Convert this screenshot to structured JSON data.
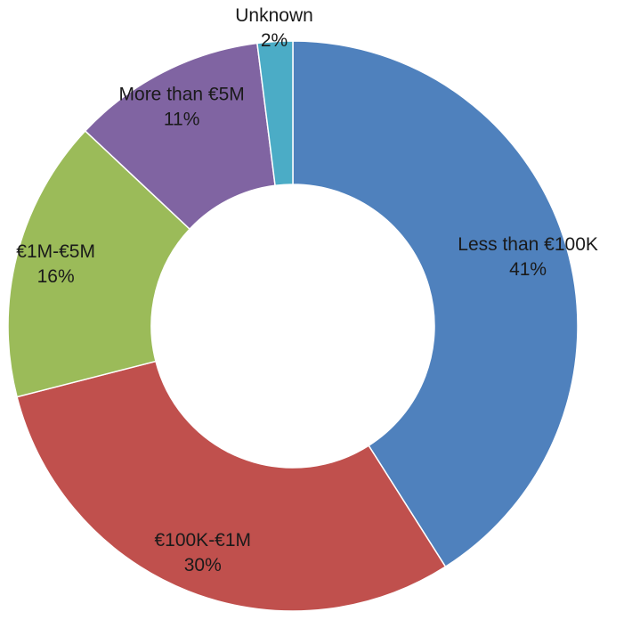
{
  "chart_data": {
    "type": "donut",
    "categories": [
      "Less than €100K",
      "€100K-€1M",
      "€1M-€5M",
      "More than €5M",
      "Unknown"
    ],
    "values": [
      41,
      30,
      16,
      11,
      2
    ],
    "value_labels": [
      "41%",
      "30%",
      "16%",
      "11%",
      "2%"
    ],
    "colors": [
      "#4f81bd",
      "#c0504d",
      "#9bbb59",
      "#8064a2",
      "#4bacc6"
    ]
  }
}
